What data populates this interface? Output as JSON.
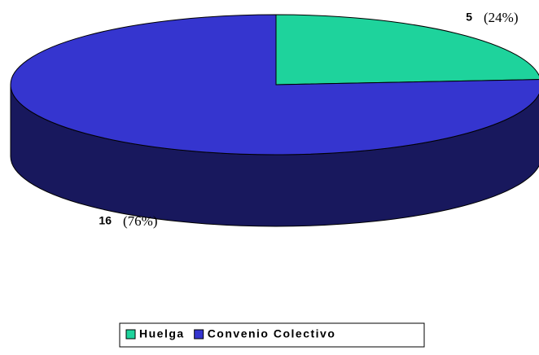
{
  "chart_data": {
    "type": "pie",
    "categories": [
      "Huelga",
      "Convenio Colectivo"
    ],
    "values": [
      5,
      16
    ],
    "percents": [
      24,
      76
    ],
    "percent_labels": [
      "(24%)",
      "(76%)"
    ],
    "colors": [
      "#1ed39c",
      "#3535cf"
    ],
    "legend": "bottom"
  }
}
